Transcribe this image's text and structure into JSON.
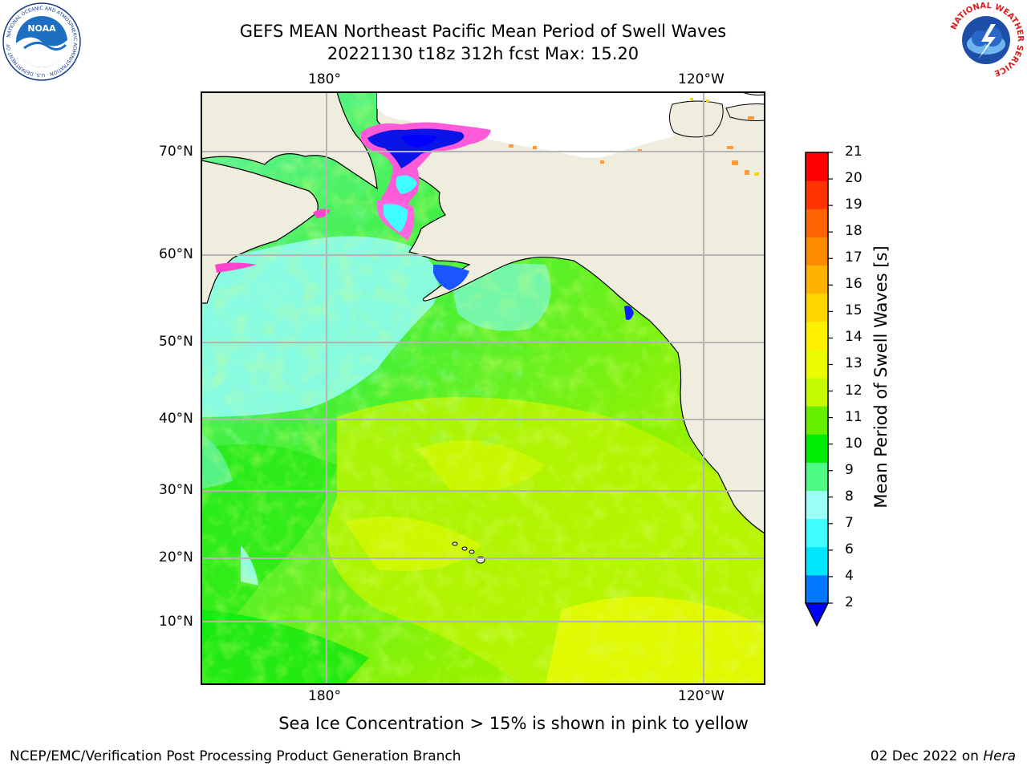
{
  "title_line1": "GEFS MEAN Northeast Pacific Mean Period of Swell Waves",
  "title_line2": "20221130 t18z 312h fcst   Max: 15.20",
  "logos": {
    "noaa": {
      "text": "NOAA",
      "ring_text": "NATIONAL OCEANIC AND ATMOSPHERIC ADMINISTRATION · U.S. DEPARTMENT OF COMMERCE",
      "icon": "noaa-logo"
    },
    "nws": {
      "ring_text": "NATIONAL WEATHER SERVICE",
      "icon": "nws-logo"
    }
  },
  "map": {
    "lon_labels_top": [
      "180°",
      "120°W"
    ],
    "lon_labels_bottom": [
      "180°",
      "120°W"
    ],
    "lat_labels": [
      "70°N",
      "60°N",
      "50°N",
      "40°N",
      "30°N",
      "20°N",
      "10°N"
    ],
    "colors": {
      "land": "#efedde",
      "coast": "#000000",
      "grid": "#b4b4b4"
    }
  },
  "colorbar": {
    "label": "Mean Period of Swell Waves [s]",
    "ticks": [
      "2",
      "4",
      "6",
      "7",
      "8",
      "9",
      "10",
      "11",
      "12",
      "13",
      "14",
      "15",
      "16",
      "17",
      "18",
      "19",
      "20",
      "21"
    ],
    "colors": [
      "#0077ff",
      "#00e6ff",
      "#3ffcff",
      "#9bfff6",
      "#4dfb84",
      "#00ec00",
      "#66f000",
      "#c5fb00",
      "#ebfb00",
      "#fff000",
      "#ffd500",
      "#ffb300",
      "#ff8c00",
      "#ff6200",
      "#ff3200",
      "#ff0000"
    ],
    "under_color": "#0000ff"
  },
  "caption": "Sea Ice Concentration > 15% is shown in pink to yellow",
  "footer": {
    "left": "NCEP/EMC/Verification Post Processing Product Generation Branch",
    "right_date": "02 Dec 2022 on ",
    "right_host": "Hera"
  }
}
